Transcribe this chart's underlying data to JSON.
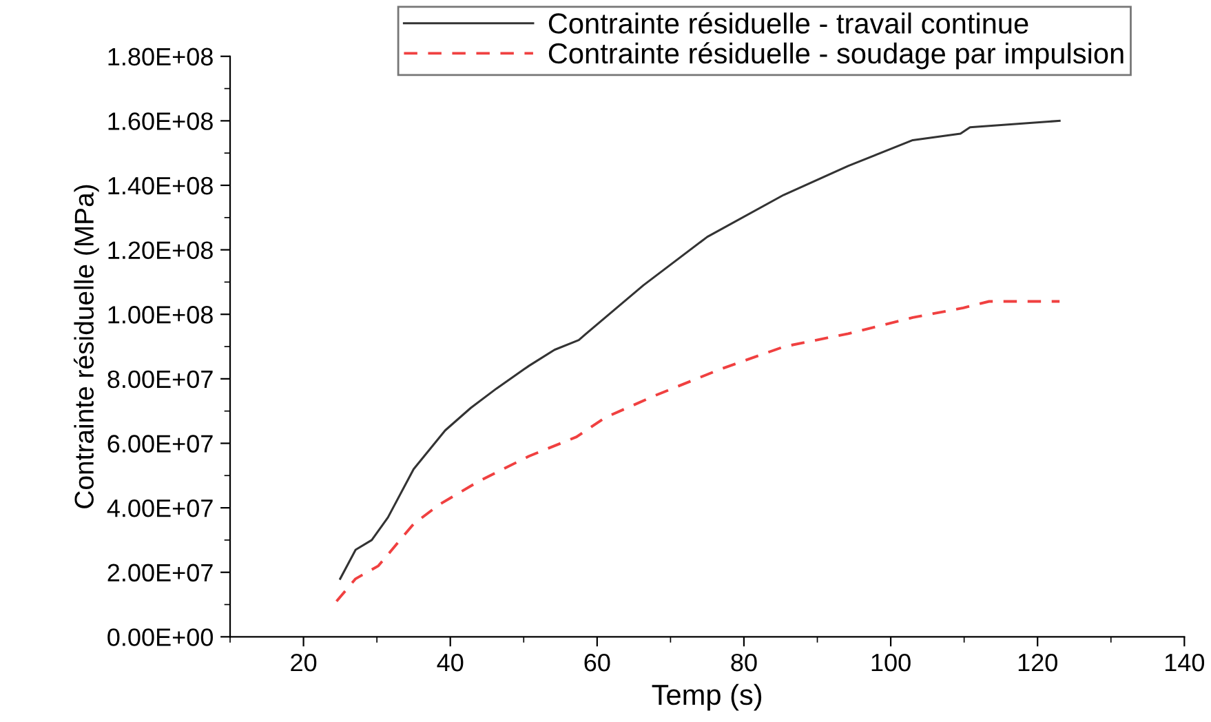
{
  "chart_data": {
    "type": "line",
    "xlabel": "Temp (s)",
    "ylabel": "Contrainte résiduelle (MPa)",
    "xlim": [
      10,
      140
    ],
    "xticks": [
      20,
      40,
      60,
      80,
      100,
      120,
      140
    ],
    "ylim": [
      0,
      180000000
    ],
    "yticks": [
      {
        "value": 0,
        "label": "0.00E+00"
      },
      {
        "value": 20000000,
        "label": "2.00E+07"
      },
      {
        "value": 40000000,
        "label": "4.00E+07"
      },
      {
        "value": 60000000,
        "label": "6.00E+07"
      },
      {
        "value": 80000000,
        "label": "8.00E+07"
      },
      {
        "value": 100000000,
        "label": "1.00E+08"
      },
      {
        "value": 120000000,
        "label": "1.20E+08"
      },
      {
        "value": 140000000,
        "label": "1.40E+08"
      },
      {
        "value": 160000000,
        "label": "1.60E+08"
      },
      {
        "value": 180000000,
        "label": "1.80E+08"
      }
    ],
    "grid": false,
    "legend": "top",
    "marker": "none",
    "series": [
      {
        "name": "Contrainte résiduelle - travail continue",
        "color": "#333333",
        "line_style": "solid",
        "x": [
          25,
          27.1,
          29.3,
          31.5,
          35,
          39.3,
          42.8,
          46.3,
          50.7,
          54.2,
          57.5,
          58.5,
          66.3,
          75,
          85.4,
          94.2,
          103,
          109.5,
          110.8,
          123
        ],
        "values": [
          18000000,
          27000000,
          30000000,
          37000000,
          52000000,
          64000000,
          71000000,
          77000000,
          84000000,
          89000000,
          92000000,
          94000000,
          109000000,
          124000000,
          137000000,
          146000000,
          154000000,
          156000000,
          158000000,
          160000000
        ]
      },
      {
        "name": "Contrainte résiduelle - soudage par impulsion",
        "color": "#f04040",
        "line_style": "dashed",
        "x": [
          24.5,
          27.1,
          30.2,
          35,
          38.5,
          43.7,
          50.7,
          57.2,
          61.1,
          68.1,
          76.8,
          85.5,
          94.2,
          103,
          109.9,
          113.4,
          123
        ],
        "values": [
          11000000,
          18000000,
          22000000,
          35000000,
          41000000,
          48000000,
          56000000,
          62000000,
          68000000,
          75000000,
          83000000,
          90000000,
          94000000,
          99000000,
          102000000,
          104000000,
          104000000
        ]
      }
    ]
  }
}
